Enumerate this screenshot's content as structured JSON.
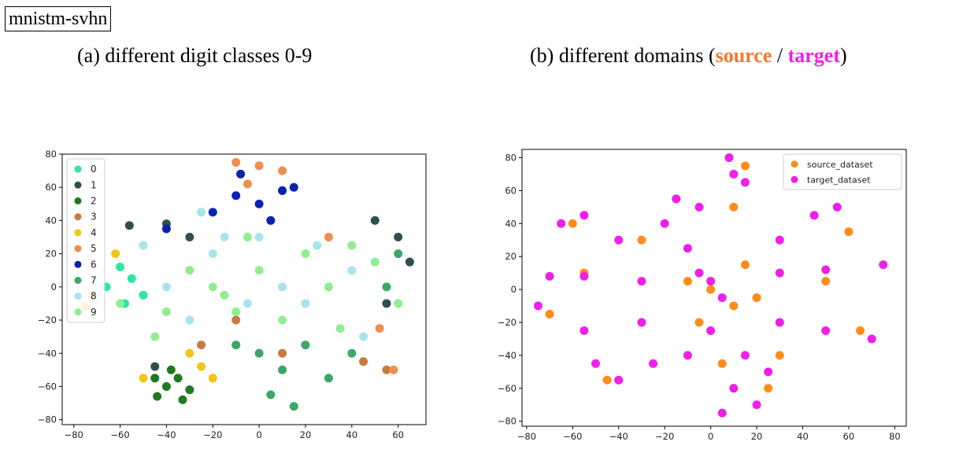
{
  "header": {
    "tag": "mnistm-svhn"
  },
  "captions": {
    "a": "(a) different digit classes 0-9",
    "b_prefix": "(b) different domains (",
    "b_source": "source",
    "b_sep": " / ",
    "b_target": "target",
    "b_suffix": ")"
  },
  "chart_data": [
    {
      "type": "scatter",
      "title": "",
      "xlabel": "",
      "ylabel": "",
      "xlim": [
        -85,
        72
      ],
      "ylim": [
        -83,
        80
      ],
      "xticks": [
        -80,
        -60,
        -40,
        -20,
        0,
        20,
        40,
        60
      ],
      "yticks": [
        -80,
        -60,
        -40,
        -20,
        0,
        20,
        40,
        60,
        80
      ],
      "legend_position": "top-left",
      "series": [
        {
          "name": "0",
          "color": "#2ee6a0",
          "points": [
            [
              -60,
              12
            ],
            [
              -55,
              5
            ],
            [
              -50,
              -5
            ],
            [
              -66,
              0
            ],
            [
              -58,
              -10
            ]
          ]
        },
        {
          "name": "1",
          "color": "#2f4f4f",
          "points": [
            [
              -56,
              37
            ],
            [
              -40,
              38
            ],
            [
              60,
              30
            ],
            [
              65,
              15
            ],
            [
              55,
              -10
            ],
            [
              -45,
              -48
            ],
            [
              50,
              40
            ],
            [
              -30,
              30
            ]
          ]
        },
        {
          "name": "2",
          "color": "#1e7a1e",
          "points": [
            [
              -40,
              -60
            ],
            [
              -35,
              -55
            ],
            [
              -44,
              -66
            ],
            [
              -30,
              -62
            ],
            [
              -38,
              -50
            ],
            [
              -45,
              -55
            ],
            [
              -33,
              -68
            ]
          ]
        },
        {
          "name": "3",
          "color": "#c87a3e",
          "points": [
            [
              -10,
              -20
            ],
            [
              45,
              -45
            ],
            [
              10,
              -40
            ],
            [
              55,
              -50
            ],
            [
              -25,
              -35
            ]
          ]
        },
        {
          "name": "4",
          "color": "#f5c518",
          "points": [
            [
              -75,
              -12
            ],
            [
              -72,
              -5
            ],
            [
              -30,
              -40
            ],
            [
              -50,
              -55
            ],
            [
              -20,
              -55
            ],
            [
              -62,
              20
            ],
            [
              -25,
              -48
            ]
          ]
        },
        {
          "name": "5",
          "color": "#ee8e50",
          "points": [
            [
              -10,
              75
            ],
            [
              0,
              73
            ],
            [
              10,
              70
            ],
            [
              30,
              30
            ],
            [
              -5,
              62
            ],
            [
              58,
              -50
            ],
            [
              52,
              -25
            ]
          ]
        },
        {
          "name": "6",
          "color": "#0a22b0",
          "points": [
            [
              -10,
              55
            ],
            [
              0,
              50
            ],
            [
              10,
              58
            ],
            [
              -20,
              45
            ],
            [
              5,
              40
            ],
            [
              15,
              60
            ],
            [
              -8,
              68
            ],
            [
              -40,
              35
            ]
          ]
        },
        {
          "name": "7",
          "color": "#3aa866",
          "points": [
            [
              0,
              -40
            ],
            [
              10,
              -50
            ],
            [
              5,
              -65
            ],
            [
              15,
              -72
            ],
            [
              20,
              -35
            ],
            [
              -10,
              -35
            ],
            [
              30,
              -55
            ],
            [
              40,
              -40
            ],
            [
              60,
              20
            ],
            [
              55,
              0
            ]
          ]
        },
        {
          "name": "8",
          "color": "#a8e4ec",
          "points": [
            [
              -50,
              25
            ],
            [
              -40,
              0
            ],
            [
              -20,
              20
            ],
            [
              0,
              30
            ],
            [
              20,
              -10
            ],
            [
              40,
              10
            ],
            [
              -30,
              -20
            ],
            [
              10,
              0
            ],
            [
              -5,
              -10
            ],
            [
              25,
              25
            ],
            [
              45,
              -30
            ],
            [
              -25,
              45
            ],
            [
              -15,
              30
            ]
          ]
        },
        {
          "name": "9",
          "color": "#90ee90",
          "points": [
            [
              -60,
              -10
            ],
            [
              -40,
              -15
            ],
            [
              -20,
              0
            ],
            [
              0,
              10
            ],
            [
              20,
              20
            ],
            [
              40,
              25
            ],
            [
              -10,
              -15
            ],
            [
              -30,
              10
            ],
            [
              10,
              -20
            ],
            [
              30,
              0
            ],
            [
              50,
              15
            ],
            [
              -45,
              -30
            ],
            [
              -5,
              30
            ],
            [
              60,
              -10
            ],
            [
              35,
              -25
            ],
            [
              -15,
              -5
            ]
          ]
        }
      ]
    },
    {
      "type": "scatter",
      "title": "",
      "xlabel": "",
      "ylabel": "",
      "xlim": [
        -82,
        85
      ],
      "ylim": [
        -83,
        85
      ],
      "xticks": [
        -80,
        -60,
        -40,
        -20,
        0,
        20,
        40,
        60,
        80
      ],
      "yticks": [
        -80,
        -60,
        -40,
        -20,
        0,
        20,
        40,
        60,
        80
      ],
      "legend_position": "top-right",
      "series": [
        {
          "name": "source_dataset",
          "color": "#ff8c1a",
          "points": [
            [
              0,
              0
            ],
            [
              10,
              -10
            ],
            [
              -10,
              5
            ],
            [
              15,
              15
            ],
            [
              -5,
              -20
            ],
            [
              20,
              -5
            ],
            [
              -60,
              40
            ],
            [
              60,
              35
            ],
            [
              -45,
              -55
            ],
            [
              25,
              -60
            ],
            [
              65,
              -25
            ],
            [
              -70,
              -15
            ],
            [
              -55,
              10
            ],
            [
              50,
              5
            ],
            [
              10,
              50
            ],
            [
              -15,
              55
            ],
            [
              15,
              75
            ],
            [
              30,
              -40
            ],
            [
              -30,
              30
            ],
            [
              5,
              -45
            ]
          ]
        },
        {
          "name": "target_dataset",
          "color": "#f01ee9",
          "points": [
            [
              0,
              5
            ],
            [
              5,
              -5
            ],
            [
              -5,
              10
            ],
            [
              -20,
              40
            ],
            [
              -15,
              55
            ],
            [
              -10,
              25
            ],
            [
              10,
              70
            ],
            [
              8,
              80
            ],
            [
              15,
              65
            ],
            [
              30,
              30
            ],
            [
              45,
              45
            ],
            [
              55,
              50
            ],
            [
              -40,
              30
            ],
            [
              -55,
              45
            ],
            [
              -65,
              40
            ],
            [
              -30,
              5
            ],
            [
              -55,
              8
            ],
            [
              -70,
              8
            ],
            [
              30,
              10
            ],
            [
              50,
              12
            ],
            [
              75,
              15
            ],
            [
              -30,
              -20
            ],
            [
              -55,
              -25
            ],
            [
              -75,
              -10
            ],
            [
              30,
              -20
            ],
            [
              50,
              -25
            ],
            [
              70,
              -30
            ],
            [
              -25,
              -45
            ],
            [
              -40,
              -55
            ],
            [
              -50,
              -45
            ],
            [
              15,
              -40
            ],
            [
              10,
              -60
            ],
            [
              5,
              -75
            ],
            [
              20,
              -70
            ],
            [
              -10,
              -40
            ],
            [
              0,
              -25
            ],
            [
              -5,
              50
            ],
            [
              25,
              -50
            ]
          ]
        }
      ]
    }
  ]
}
